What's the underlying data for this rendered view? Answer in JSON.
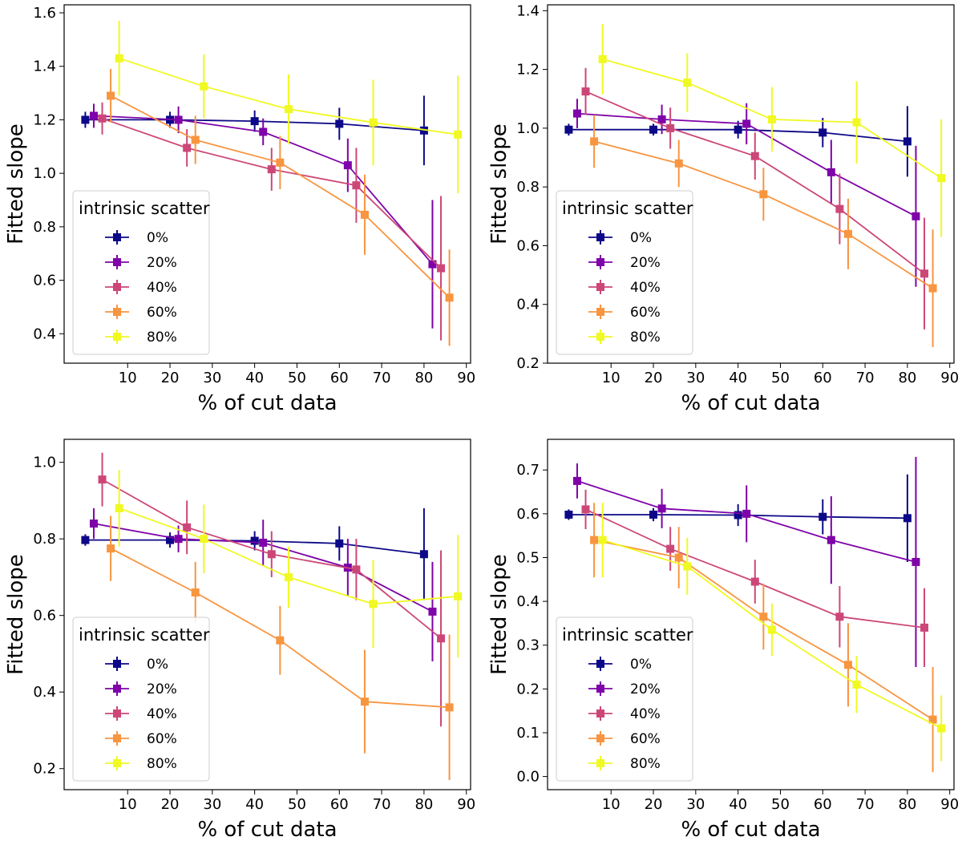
{
  "figure": {
    "legend_title": "intrinsic scatter",
    "legend_location": "lower-left"
  },
  "chart_data": [
    {
      "type": "line",
      "panel": "top-left",
      "xlabel": "% of cut data",
      "ylabel": "Fitted slope",
      "xlim": [
        -5,
        91
      ],
      "ylim": [
        0.29,
        1.63
      ],
      "xticks": [
        10,
        20,
        30,
        40,
        50,
        60,
        70,
        80,
        90
      ],
      "yticks": [
        0.4,
        0.6,
        0.8,
        1.0,
        1.2,
        1.4,
        1.6
      ],
      "ytick_decimals": 1,
      "series": [
        {
          "name": "0%",
          "color": "#0d0887",
          "x": [
            0,
            20,
            40,
            60,
            80
          ],
          "y": [
            1.2,
            1.2,
            1.195,
            1.185,
            1.16
          ],
          "err": [
            0.03,
            0.03,
            0.04,
            0.06,
            0.13
          ]
        },
        {
          "name": "20%",
          "color": "#7e03a8",
          "x": [
            2,
            22,
            42,
            62,
            82
          ],
          "y": [
            1.215,
            1.2,
            1.155,
            1.03,
            0.66
          ],
          "err": [
            0.045,
            0.05,
            0.05,
            0.1,
            0.24
          ]
        },
        {
          "name": "40%",
          "color": "#cc4778",
          "x": [
            4,
            24,
            44,
            64,
            84
          ],
          "y": [
            1.205,
            1.095,
            1.015,
            0.955,
            0.645
          ],
          "err": [
            0.06,
            0.07,
            0.08,
            0.14,
            0.27
          ]
        },
        {
          "name": "60%",
          "color": "#f89540",
          "x": [
            6,
            26,
            46,
            66,
            86
          ],
          "y": [
            1.29,
            1.125,
            1.04,
            0.845,
            0.535
          ],
          "err": [
            0.1,
            0.09,
            0.1,
            0.15,
            0.18
          ]
        },
        {
          "name": "80%",
          "color": "#f0f921",
          "x": [
            8,
            28,
            48,
            68,
            88
          ],
          "y": [
            1.43,
            1.325,
            1.24,
            1.19,
            1.145
          ],
          "err": [
            0.14,
            0.12,
            0.13,
            0.16,
            0.22
          ]
        }
      ]
    },
    {
      "type": "line",
      "panel": "top-right",
      "xlabel": "% of cut data",
      "ylabel": "Fitted slope",
      "xlim": [
        -5,
        91
      ],
      "ylim": [
        0.2,
        1.42
      ],
      "xticks": [
        10,
        20,
        30,
        40,
        50,
        60,
        70,
        80,
        90
      ],
      "yticks": [
        0.2,
        0.4,
        0.6,
        0.8,
        1.0,
        1.2,
        1.4
      ],
      "ytick_decimals": 1,
      "series": [
        {
          "name": "0%",
          "color": "#0d0887",
          "x": [
            0,
            20,
            40,
            60,
            80
          ],
          "y": [
            0.995,
            0.995,
            0.995,
            0.985,
            0.955
          ],
          "err": [
            0.02,
            0.02,
            0.03,
            0.05,
            0.12
          ]
        },
        {
          "name": "20%",
          "color": "#7e03a8",
          "x": [
            2,
            22,
            42,
            62,
            82
          ],
          "y": [
            1.05,
            1.03,
            1.015,
            0.85,
            0.7
          ],
          "err": [
            0.05,
            0.05,
            0.07,
            0.11,
            0.24
          ]
        },
        {
          "name": "40%",
          "color": "#cc4778",
          "x": [
            4,
            24,
            44,
            64,
            84
          ],
          "y": [
            1.125,
            1.0,
            0.905,
            0.725,
            0.505
          ],
          "err": [
            0.08,
            0.07,
            0.08,
            0.12,
            0.19
          ]
        },
        {
          "name": "60%",
          "color": "#f89540",
          "x": [
            6,
            26,
            46,
            66,
            86
          ],
          "y": [
            0.955,
            0.88,
            0.775,
            0.64,
            0.455
          ],
          "err": [
            0.09,
            0.08,
            0.09,
            0.12,
            0.2
          ]
        },
        {
          "name": "80%",
          "color": "#f0f921",
          "x": [
            8,
            28,
            48,
            68,
            88
          ],
          "y": [
            1.235,
            1.155,
            1.03,
            1.02,
            0.83
          ],
          "err": [
            0.12,
            0.1,
            0.11,
            0.14,
            0.2
          ]
        }
      ]
    },
    {
      "type": "line",
      "panel": "bottom-left",
      "xlabel": "% of cut data",
      "ylabel": "Fitted slope",
      "xlim": [
        -5,
        91
      ],
      "ylim": [
        0.145,
        1.06
      ],
      "xticks": [
        10,
        20,
        30,
        40,
        50,
        60,
        70,
        80,
        90
      ],
      "yticks": [
        0.2,
        0.4,
        0.6,
        0.8,
        1.0
      ],
      "ytick_decimals": 1,
      "series": [
        {
          "name": "0%",
          "color": "#0d0887",
          "x": [
            0,
            20,
            40,
            60,
            80
          ],
          "y": [
            0.797,
            0.797,
            0.795,
            0.788,
            0.76
          ],
          "err": [
            0.015,
            0.02,
            0.025,
            0.045,
            0.12
          ]
        },
        {
          "name": "20%",
          "color": "#7e03a8",
          "x": [
            2,
            22,
            42,
            62,
            82
          ],
          "y": [
            0.84,
            0.8,
            0.79,
            0.725,
            0.61
          ],
          "err": [
            0.04,
            0.035,
            0.06,
            0.075,
            0.13
          ]
        },
        {
          "name": "40%",
          "color": "#cc4778",
          "x": [
            4,
            24,
            44,
            64,
            84
          ],
          "y": [
            0.955,
            0.83,
            0.76,
            0.72,
            0.54
          ],
          "err": [
            0.07,
            0.07,
            0.06,
            0.08,
            0.23
          ]
        },
        {
          "name": "60%",
          "color": "#f89540",
          "x": [
            6,
            26,
            46,
            66,
            86
          ],
          "y": [
            0.775,
            0.66,
            0.535,
            0.375,
            0.36
          ],
          "err": [
            0.085,
            0.08,
            0.09,
            0.135,
            0.19
          ]
        },
        {
          "name": "80%",
          "color": "#f0f921",
          "x": [
            8,
            28,
            48,
            68,
            88
          ],
          "y": [
            0.88,
            0.8,
            0.7,
            0.63,
            0.65
          ],
          "err": [
            0.1,
            0.09,
            0.08,
            0.115,
            0.16
          ]
        }
      ]
    },
    {
      "type": "line",
      "panel": "bottom-right",
      "xlabel": "% of cut data",
      "ylabel": "Fitted slope",
      "xlim": [
        -5,
        91
      ],
      "ylim": [
        -0.03,
        0.77
      ],
      "xticks": [
        10,
        20,
        30,
        40,
        50,
        60,
        70,
        80,
        90
      ],
      "yticks": [
        0.0,
        0.1,
        0.2,
        0.3,
        0.4,
        0.5,
        0.6,
        0.7
      ],
      "ytick_decimals": 1,
      "series": [
        {
          "name": "0%",
          "color": "#0d0887",
          "x": [
            0,
            20,
            40,
            60,
            80
          ],
          "y": [
            0.598,
            0.598,
            0.597,
            0.593,
            0.59
          ],
          "err": [
            0.012,
            0.015,
            0.025,
            0.04,
            0.1
          ]
        },
        {
          "name": "20%",
          "color": "#7e03a8",
          "x": [
            2,
            22,
            42,
            62,
            82
          ],
          "y": [
            0.675,
            0.612,
            0.6,
            0.54,
            0.49
          ],
          "err": [
            0.04,
            0.045,
            0.065,
            0.1,
            0.24
          ]
        },
        {
          "name": "40%",
          "color": "#cc4778",
          "x": [
            4,
            24,
            44,
            64,
            84
          ],
          "y": [
            0.61,
            0.52,
            0.445,
            0.365,
            0.34
          ],
          "err": [
            0.045,
            0.05,
            0.05,
            0.07,
            0.09
          ]
        },
        {
          "name": "60%",
          "color": "#f89540",
          "x": [
            6,
            26,
            46,
            66,
            86
          ],
          "y": [
            0.54,
            0.5,
            0.365,
            0.255,
            0.13
          ],
          "err": [
            0.085,
            0.07,
            0.075,
            0.095,
            0.12
          ]
        },
        {
          "name": "80%",
          "color": "#f0f921",
          "x": [
            8,
            28,
            48,
            68,
            88
          ],
          "y": [
            0.54,
            0.48,
            0.335,
            0.21,
            0.11
          ],
          "err": [
            0.085,
            0.065,
            0.06,
            0.065,
            0.075
          ]
        }
      ]
    }
  ]
}
